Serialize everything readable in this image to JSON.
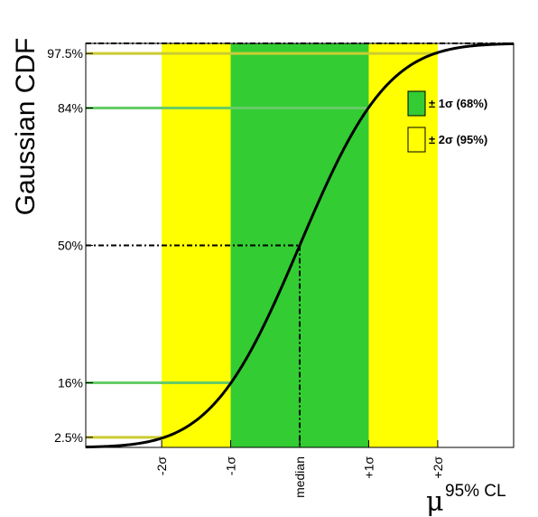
{
  "chart_data": {
    "type": "line",
    "ylabel": "Gaussian CDF",
    "xlabel_symbol": "μ",
    "xlabel_superscript": "95% CL",
    "xlim": [
      -3.1,
      3.1
    ],
    "ylim": [
      0,
      1
    ],
    "x_ticks": [
      {
        "x": -2,
        "label": "-2σ"
      },
      {
        "x": -1,
        "label": "-1σ"
      },
      {
        "x": 0,
        "label": "median"
      },
      {
        "x": 1,
        "label": "+1σ"
      },
      {
        "x": 2,
        "label": "+2σ"
      }
    ],
    "y_ticks": [
      {
        "y": 0.025,
        "label": "2.5%"
      },
      {
        "y": 0.16,
        "label": "16%"
      },
      {
        "y": 0.5,
        "label": "50%"
      },
      {
        "y": 0.84,
        "label": "84%"
      },
      {
        "y": 0.975,
        "label": "97.5%"
      }
    ],
    "bands": [
      {
        "name": "± 2σ (95%)",
        "x_range": [
          -2,
          2
        ],
        "color": "#ffff00"
      },
      {
        "name": "± 1σ (68%)",
        "x_range": [
          -1,
          1
        ],
        "color": "#33cc33"
      }
    ],
    "curve": {
      "type": "gaussian_cdf",
      "mean": 0,
      "sigma": 1,
      "color": "#000000",
      "x": [
        -3.1,
        -2.5,
        -2,
        -1.5,
        -1,
        -0.5,
        0,
        0.5,
        1,
        1.5,
        2,
        2.5,
        3.1
      ],
      "y": [
        0.001,
        0.006,
        0.023,
        0.067,
        0.159,
        0.309,
        0.5,
        0.691,
        0.841,
        0.933,
        0.977,
        0.994,
        0.999
      ]
    },
    "reference_lines": [
      {
        "y": 0.025,
        "x_to": -2,
        "color": "#cccc33"
      },
      {
        "y": 0.16,
        "x_to": -1,
        "color": "#66cc66"
      },
      {
        "y": 0.84,
        "x_to": 1,
        "color": "#66cc66"
      },
      {
        "y": 0.975,
        "x_to": 2,
        "color": "#cccc33"
      }
    ],
    "dashed_lines": [
      {
        "y": 0.5,
        "x_to": 0,
        "vertical_at_x": 0
      },
      {
        "y": 1.0,
        "full_width": true
      }
    ],
    "legend": {
      "position": "right",
      "entries": [
        {
          "label": "± 1σ (68%)",
          "color": "#33cc33"
        },
        {
          "label": "± 2σ (95%)",
          "color": "#ffff00"
        }
      ]
    },
    "grid": false
  }
}
